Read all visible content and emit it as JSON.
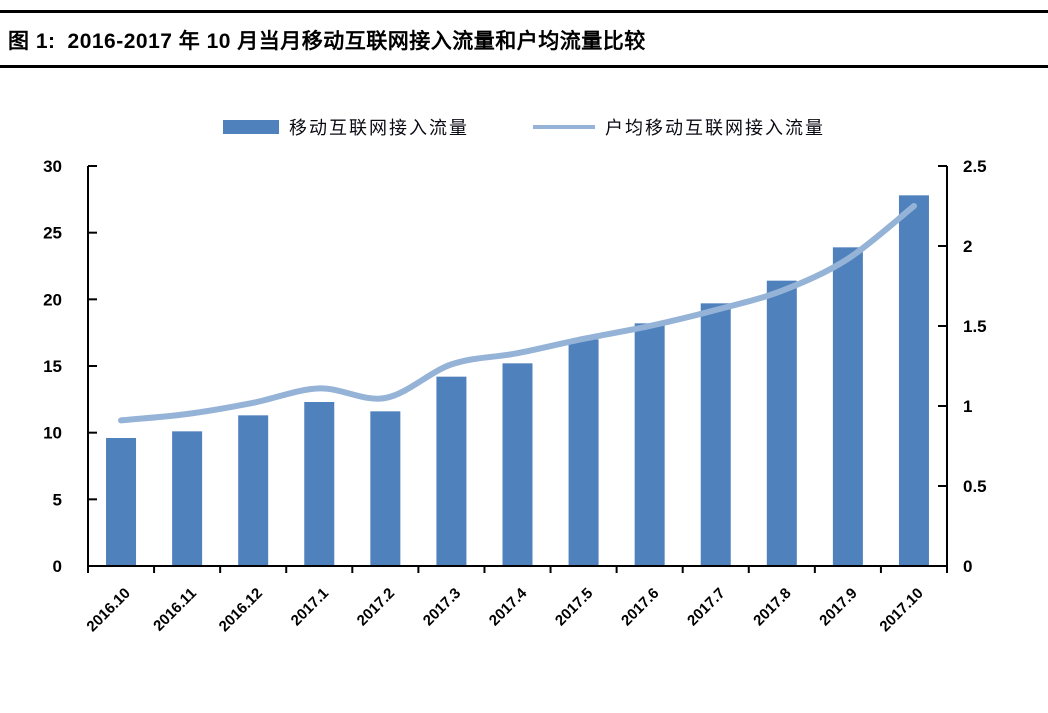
{
  "figure": {
    "label": "图 1:",
    "title": "2016-2017 年 10 月当月移动互联网接入流量和户均流量比较"
  },
  "legend": {
    "bar_series_label": "移动互联网接入流量",
    "line_series_label": "户均移动互联网接入流量"
  },
  "colors": {
    "bar": "#4f81bd",
    "line": "#95b3d7",
    "axis": "#000000",
    "rule": "#000000"
  },
  "chart_data": {
    "type": "bar",
    "subtype": "combo-bar-line",
    "title": "2016-2017 年 10 月当月移动互联网接入流量和户均流量比较",
    "categories": [
      "2016.10",
      "2016.11",
      "2016.12",
      "2017.1",
      "2017.2",
      "2017.3",
      "2017.4",
      "2017.5",
      "2017.6",
      "2017.7",
      "2017.8",
      "2017.9",
      "2017.10"
    ],
    "series": [
      {
        "name": "移动互联网接入流量",
        "type": "bar",
        "axis": "left",
        "color": "#4f81bd",
        "values": [
          9.6,
          10.1,
          11.3,
          12.3,
          11.6,
          14.2,
          15.2,
          17.0,
          18.2,
          19.7,
          21.4,
          23.9,
          27.8
        ]
      },
      {
        "name": "户均移动互联网接入流量",
        "type": "line",
        "axis": "right",
        "color": "#95b3d7",
        "smooth": true,
        "values": [
          0.91,
          0.95,
          1.02,
          1.11,
          1.05,
          1.26,
          1.33,
          1.42,
          1.5,
          1.6,
          1.72,
          1.92,
          2.25
        ]
      }
    ],
    "left_axis": {
      "min": 0,
      "max": 30,
      "step": 5,
      "ticks": [
        "0",
        "5",
        "10",
        "15",
        "20",
        "25",
        "30"
      ]
    },
    "right_axis": {
      "min": 0,
      "max": 2.5,
      "step": 0.5,
      "ticks": [
        "0",
        "0.5",
        "1",
        "1.5",
        "2",
        "2.5"
      ]
    },
    "xlabel": "",
    "ylabel": "",
    "grid": false,
    "legend_position": "top",
    "x_label_rotation": -45
  }
}
